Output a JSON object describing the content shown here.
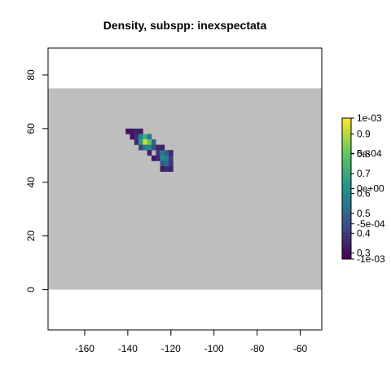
{
  "chart_data": {
    "type": "heatmap",
    "title": "Density, subspp: inexspectata",
    "xlabel": "",
    "ylabel": "",
    "xlim": [
      -177,
      -50
    ],
    "ylim": [
      -15,
      90
    ],
    "x_ticks": [
      -160,
      -140,
      -120,
      -100,
      -80,
      -60
    ],
    "y_ticks": [
      0,
      20,
      40,
      60,
      80
    ],
    "background_region": {
      "x": [
        -177,
        -50
      ],
      "y": [
        0,
        75
      ],
      "color": "#bebebe"
    },
    "cell_size": 2,
    "cells": [
      {
        "x": -140,
        "y": 59,
        "v": 0.3
      },
      {
        "x": -138,
        "y": 59,
        "v": 0.32
      },
      {
        "x": -136,
        "y": 59,
        "v": 0.34
      },
      {
        "x": -134,
        "y": 59,
        "v": 0.32
      },
      {
        "x": -138,
        "y": 57,
        "v": 0.3
      },
      {
        "x": -136,
        "y": 57,
        "v": 0.38
      },
      {
        "x": -134,
        "y": 57,
        "v": 0.62
      },
      {
        "x": -132,
        "y": 57,
        "v": 0.72
      },
      {
        "x": -130,
        "y": 57,
        "v": 0.55
      },
      {
        "x": -136,
        "y": 55,
        "v": 0.36
      },
      {
        "x": -134,
        "y": 55,
        "v": 0.65
      },
      {
        "x": -132,
        "y": 55,
        "v": 0.93
      },
      {
        "x": -130,
        "y": 55,
        "v": 0.8
      },
      {
        "x": -128,
        "y": 55,
        "v": 0.5
      },
      {
        "x": -134,
        "y": 53,
        "v": 0.42
      },
      {
        "x": -132,
        "y": 53,
        "v": 0.56
      },
      {
        "x": -130,
        "y": 53,
        "v": 0.6
      },
      {
        "x": -128,
        "y": 53,
        "v": 0.45
      },
      {
        "x": -126,
        "y": 53,
        "v": 0.36
      },
      {
        "x": -124,
        "y": 53,
        "v": 0.34
      },
      {
        "x": -130,
        "y": 51,
        "v": 0.33
      },
      {
        "x": -126,
        "y": 51,
        "v": 0.4
      },
      {
        "x": -124,
        "y": 51,
        "v": 0.55
      },
      {
        "x": -122,
        "y": 51,
        "v": 0.48
      },
      {
        "x": -120,
        "y": 51,
        "v": 0.35
      },
      {
        "x": -128,
        "y": 49,
        "v": 0.32
      },
      {
        "x": -126,
        "y": 49,
        "v": 0.36
      },
      {
        "x": -124,
        "y": 49,
        "v": 0.62
      },
      {
        "x": -122,
        "y": 49,
        "v": 0.57
      },
      {
        "x": -120,
        "y": 49,
        "v": 0.4
      },
      {
        "x": -124,
        "y": 47,
        "v": 0.45
      },
      {
        "x": -122,
        "y": 47,
        "v": 0.52
      },
      {
        "x": -120,
        "y": 47,
        "v": 0.38
      },
      {
        "x": -124,
        "y": 45,
        "v": 0.33
      },
      {
        "x": -122,
        "y": 45,
        "v": 0.36
      },
      {
        "x": -120,
        "y": 45,
        "v": 0.34
      }
    ],
    "colorbar": {
      "palette": [
        "#440154",
        "#3b528b",
        "#21908c",
        "#5dc863",
        "#fde725"
      ],
      "range": [
        0.27,
        0.98
      ],
      "ticks_right": [
        "0.3",
        "0.4",
        "0.5",
        "0.6",
        "0.7",
        "0.8",
        "0.9"
      ],
      "tick_values_right": [
        0.3,
        0.4,
        0.5,
        0.6,
        0.7,
        0.8,
        0.9
      ],
      "ticks_overlay": [
        "-1e-03",
        "-5e-04",
        "0e+00",
        "5e-04",
        "1e-03"
      ],
      "tick_values_overlay": [
        -0.001,
        -0.0005,
        0,
        0.0005,
        0.001
      ]
    }
  }
}
